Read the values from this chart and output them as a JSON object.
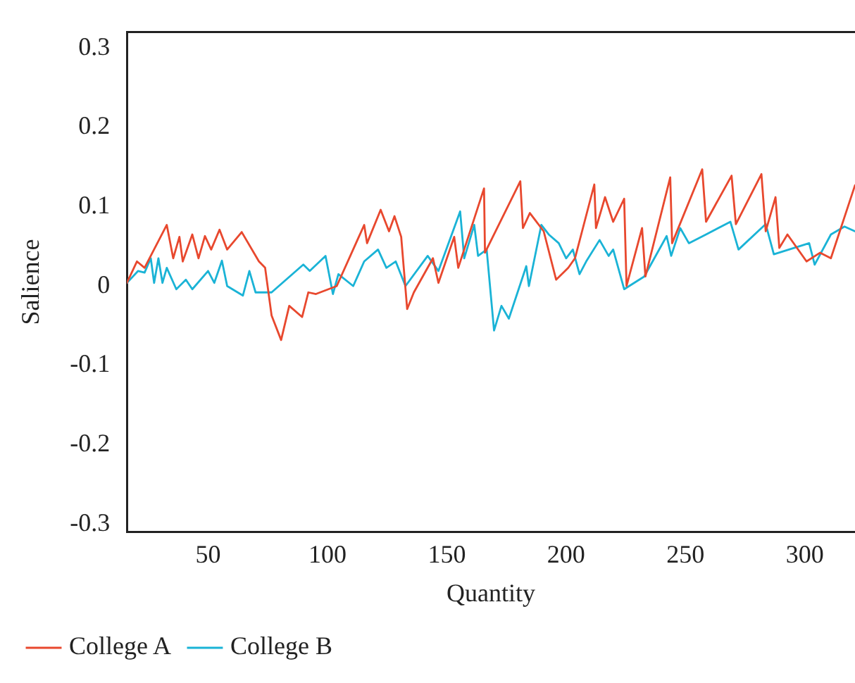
{
  "chart_data": {
    "type": "line",
    "xlabel": "Quantity",
    "ylabel": "Salience",
    "xlim": [
      16,
      321
    ],
    "xticks": [
      50,
      100,
      150,
      200,
      250,
      300
    ],
    "ylim": [
      -0.31,
      0.32
    ],
    "yticks": [
      -0.3,
      -0.2,
      -0.1,
      0,
      0.1,
      0.2,
      0.3
    ],
    "grid": false,
    "legend": "bottom left",
    "marker": "none",
    "line_style": "solid",
    "series": [
      {
        "name": "College A",
        "color": "#e8482e",
        "x": [
          16,
          20.2,
          23.4,
          32.7,
          35.4,
          38,
          39.4,
          43.4,
          46,
          48.7,
          51.3,
          54.8,
          58,
          64.1,
          71.3,
          73.9,
          76.6,
          80.6,
          84,
          89.4,
          92,
          95.2,
          103.9,
          115.4,
          116.6,
          122.3,
          125.8,
          128.1,
          130.9,
          133.4,
          136.2,
          144.2,
          146.5,
          153.1,
          154.8,
          165.6,
          166,
          180.8,
          181.9,
          184.8,
          190.6,
          195.8,
          200.9,
          203.7,
          211.8,
          212.5,
          216.3,
          219.7,
          224.3,
          225.3,
          231.8,
          233.2,
          243.6,
          244.4,
          257,
          258.6,
          269.3,
          271.1,
          281.8,
          283.6,
          287.7,
          289.3,
          292.7,
          300.7,
          306.4,
          310.9,
          321
        ],
        "values": [
          0.004,
          0.031,
          0.023,
          0.077,
          0.035,
          0.062,
          0.031,
          0.065,
          0.035,
          0.063,
          0.046,
          0.071,
          0.046,
          0.068,
          0.031,
          0.023,
          -0.037,
          -0.068,
          -0.025,
          -0.039,
          -0.008,
          -0.01,
          0,
          0.077,
          0.054,
          0.096,
          0.069,
          0.088,
          0.062,
          -0.029,
          -0.008,
          0.035,
          0.004,
          0.062,
          0.023,
          0.123,
          0.042,
          0.132,
          0.073,
          0.092,
          0.069,
          0.008,
          0.023,
          0.035,
          0.128,
          0.073,
          0.112,
          0.081,
          0.11,
          0,
          0.073,
          0.012,
          0.137,
          0.054,
          0.147,
          0.081,
          0.139,
          0.078,
          0.141,
          0.069,
          0.112,
          0.048,
          0.065,
          0.031,
          0.042,
          0.035,
          0.127
        ]
      },
      {
        "name": "College B",
        "color": "#1ab3d6",
        "x": [
          16,
          20.7,
          23.4,
          26,
          27.4,
          29.2,
          30.9,
          32.7,
          36.7,
          40.7,
          43.4,
          50,
          52.6,
          55.8,
          58,
          64.6,
          67.3,
          69.9,
          76.6,
          89.9,
          92.6,
          99.2,
          102.3,
          104.6,
          110.8,
          115.4,
          121.2,
          124.7,
          128.6,
          132.7,
          142,
          146.5,
          155.6,
          157.3,
          161.5,
          163.1,
          166.7,
          169.8,
          172.9,
          176,
          183.3,
          184.4,
          189.6,
          192.7,
          196.9,
          200,
          202.8,
          205.6,
          208.4,
          214,
          217.8,
          219.7,
          224.3,
          232.7,
          242.1,
          244,
          247.8,
          251.4,
          258.6,
          268.8,
          272.2,
          283.6,
          287,
          301.8,
          304.1,
          310.9,
          316.6,
          321
        ],
        "values": [
          0.004,
          0.019,
          0.017,
          0.035,
          0.004,
          0.035,
          0.004,
          0.023,
          -0.004,
          0.008,
          -0.004,
          0.019,
          0.004,
          0.032,
          0,
          -0.012,
          0.019,
          -0.008,
          -0.008,
          0.027,
          0.019,
          0.038,
          -0.01,
          0.015,
          0,
          0.031,
          0.046,
          0.023,
          0.031,
          0,
          0.038,
          0.019,
          0.094,
          0.035,
          0.077,
          0.038,
          0.046,
          -0.056,
          -0.025,
          -0.041,
          0.025,
          0,
          0.077,
          0.065,
          0.054,
          0.035,
          0.046,
          0.015,
          0.031,
          0.058,
          0.038,
          0.046,
          -0.004,
          0.012,
          0.063,
          0.038,
          0.073,
          0.054,
          0.065,
          0.081,
          0.046,
          0.078,
          0.04,
          0.054,
          0.027,
          0.065,
          0.075,
          0.069
        ]
      }
    ]
  }
}
